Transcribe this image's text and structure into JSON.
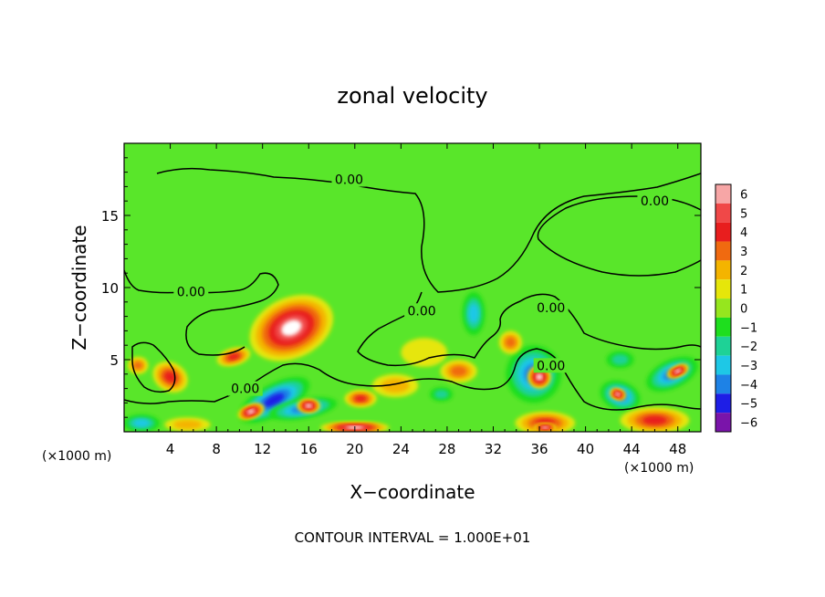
{
  "chart_data": {
    "type": "heatmap",
    "title": "zonal velocity",
    "xlabel": "X−coordinate",
    "ylabel": "Z−coordinate",
    "x_unit_left": "(×1000 m)",
    "x_unit_right": "(×1000 m)",
    "footer": "CONTOUR INTERVAL = 1.000E+01",
    "xlim": [
      0,
      50
    ],
    "ylim": [
      0,
      20
    ],
    "x_ticks": [
      4,
      8,
      12,
      16,
      20,
      24,
      28,
      32,
      36,
      40,
      44,
      48
    ],
    "y_ticks": [
      5,
      10,
      15
    ],
    "colorbar": {
      "levels": [
        6,
        5,
        4,
        3,
        2,
        1,
        0,
        -1,
        -2,
        -3,
        -4,
        -5,
        -6
      ],
      "labels": [
        "6",
        "5",
        "4",
        "3",
        "2",
        "1",
        "0",
        "−1",
        "−2",
        "−3",
        "−4",
        "−5",
        "−6"
      ],
      "colors": [
        "#f7a6a6",
        "#f04848",
        "#e81e1e",
        "#f06a10",
        "#f4b400",
        "#e6e60a",
        "#96e61e",
        "#1ede1e",
        "#1ed296",
        "#1ec8e6",
        "#1e82e6",
        "#1e1ee6",
        "#7a14aa"
      ]
    },
    "background_color": "#59e62a",
    "contour_labels": [
      {
        "text": "0.00",
        "x": 19.5,
        "z": 17.5
      },
      {
        "text": "0.00",
        "x": 46.0,
        "z": 16.0
      },
      {
        "text": "0.00",
        "x": 5.8,
        "z": 9.7
      },
      {
        "text": "0.00",
        "x": 25.8,
        "z": 8.4
      },
      {
        "text": "0.00",
        "x": 37.0,
        "z": 8.6
      },
      {
        "text": "0.00",
        "x": 37.0,
        "z": 4.6
      },
      {
        "text": "0.00",
        "x": 10.5,
        "z": 3.0
      }
    ],
    "regions": [
      {
        "x": 14.5,
        "z": 7.2,
        "rx": 3.8,
        "rz": 2.1,
        "rot": -25,
        "value": 6
      },
      {
        "x": 4.0,
        "z": 3.8,
        "rx": 1.6,
        "rz": 1.0,
        "rot": 30,
        "value": 4
      },
      {
        "x": 1.2,
        "z": 4.6,
        "rx": 0.9,
        "rz": 0.6,
        "rot": 0,
        "value": 3
      },
      {
        "x": 9.5,
        "z": 5.2,
        "rx": 1.5,
        "rz": 0.6,
        "rot": -15,
        "value": 4
      },
      {
        "x": 13.0,
        "z": 2.2,
        "rx": 3.4,
        "rz": 1.1,
        "rot": -28,
        "value": -5
      },
      {
        "x": 15.5,
        "z": 1.6,
        "rx": 3.0,
        "rz": 0.7,
        "rot": -10,
        "value": -4
      },
      {
        "x": 11.0,
        "z": 1.4,
        "rx": 1.2,
        "rz": 0.5,
        "rot": -20,
        "value": 6
      },
      {
        "x": 16.0,
        "z": 1.8,
        "rx": 1.0,
        "rz": 0.5,
        "rot": 0,
        "value": 6
      },
      {
        "x": 20.5,
        "z": 2.3,
        "rx": 1.4,
        "rz": 0.6,
        "rot": 0,
        "value": 4
      },
      {
        "x": 23.5,
        "z": 3.2,
        "rx": 2.0,
        "rz": 0.8,
        "rot": 0,
        "value": 2
      },
      {
        "x": 29.0,
        "z": 4.2,
        "rx": 1.6,
        "rz": 0.8,
        "rot": 0,
        "value": 3
      },
      {
        "x": 27.5,
        "z": 2.6,
        "rx": 1.0,
        "rz": 0.5,
        "rot": 0,
        "value": -2
      },
      {
        "x": 30.3,
        "z": 8.2,
        "rx": 1.0,
        "rz": 1.5,
        "rot": 0,
        "value": -3
      },
      {
        "x": 35.5,
        "z": 4.0,
        "rx": 2.4,
        "rz": 2.0,
        "rot": 0,
        "value": -4
      },
      {
        "x": 36.0,
        "z": 3.8,
        "rx": 1.0,
        "rz": 0.8,
        "rot": 0,
        "value": 6
      },
      {
        "x": 36.5,
        "z": 0.6,
        "rx": 2.6,
        "rz": 0.8,
        "rot": 0,
        "value": 4
      },
      {
        "x": 36.5,
        "z": 0.3,
        "rx": 1.0,
        "rz": 0.3,
        "rot": 0,
        "value": 6
      },
      {
        "x": 33.5,
        "z": 6.2,
        "rx": 1.0,
        "rz": 0.8,
        "rot": 0,
        "value": 3
      },
      {
        "x": 43.0,
        "z": 2.5,
        "rx": 1.8,
        "rz": 1.0,
        "rot": 20,
        "value": -4
      },
      {
        "x": 42.8,
        "z": 2.6,
        "rx": 0.7,
        "rz": 0.4,
        "rot": 20,
        "value": 6
      },
      {
        "x": 47.5,
        "z": 4.0,
        "rx": 2.4,
        "rz": 1.0,
        "rot": -25,
        "value": -4
      },
      {
        "x": 48.0,
        "z": 4.2,
        "rx": 1.0,
        "rz": 0.4,
        "rot": -25,
        "value": 6
      },
      {
        "x": 46.0,
        "z": 0.8,
        "rx": 3.0,
        "rz": 0.9,
        "rot": 0,
        "value": 4
      },
      {
        "x": 1.5,
        "z": 0.6,
        "rx": 1.6,
        "rz": 0.6,
        "rot": 0,
        "value": -3
      },
      {
        "x": 20.0,
        "z": 0.3,
        "rx": 3.0,
        "rz": 0.4,
        "rot": 0,
        "value": 6
      },
      {
        "x": 5.5,
        "z": 0.5,
        "rx": 2.0,
        "rz": 0.5,
        "rot": 0,
        "value": 2
      },
      {
        "x": 43.0,
        "z": 5.0,
        "rx": 1.2,
        "rz": 0.6,
        "rot": 0,
        "value": -2
      },
      {
        "x": 26.0,
        "z": 5.5,
        "rx": 2.0,
        "rz": 1.0,
        "rot": 0,
        "value": 1
      }
    ]
  }
}
